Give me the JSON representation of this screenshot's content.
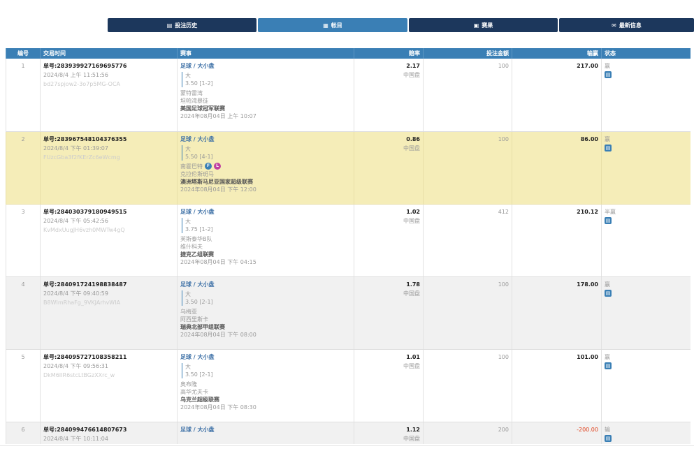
{
  "nav": [
    {
      "label": "投注历史",
      "icon": "clipboard-icon"
    },
    {
      "label": "帐目",
      "icon": "ledger-icon",
      "active": true
    },
    {
      "label": "赛果",
      "icon": "results-icon"
    },
    {
      "label": "最新信息",
      "icon": "envelope-icon"
    }
  ],
  "columns": [
    "编号",
    "交易时间",
    "赛事",
    "赔率",
    "投注金额",
    "输赢",
    "状态"
  ],
  "rows": [
    {
      "no": "1",
      "order": "单号:283939927169695776",
      "time": "2024/8/4 上午 11:51:56",
      "hash": "bd27spjow2-3o7p5MG-OCA",
      "sport": "足球 / 大小盘",
      "pick": "大",
      "line": "3.50 [1-2]",
      "home": "蒙特雷湾",
      "away": "坦帕湾暴徒",
      "league": "美国足球冠军联赛",
      "match_time": "2024年08月04日 上午 10:07",
      "odds": "2.17",
      "odds_type": "中国盘",
      "stake": "100",
      "pl": "217.00",
      "status": "赢"
    },
    {
      "no": "2",
      "order": "单号:283967548104376355",
      "time": "2024/8/4 下午 01:39:07",
      "hash": "FUzcGba3f2fKErZc6eWcmg",
      "sport": "足球 / 大小盘",
      "pick": "大",
      "line": "5.50 [4-1]",
      "home": "南霍巴特",
      "home_badges": [
        "F",
        "L"
      ],
      "away": "克拉伦斯斑马",
      "league": "澳洲塔斯马尼亚国家超级联赛",
      "match_time": "2024年08月04日 下午 12:00",
      "odds": "0.86",
      "odds_type": "中国盘",
      "stake": "100",
      "pl": "86.00",
      "status": "赢"
    },
    {
      "no": "3",
      "order": "单号:284030379180949515",
      "time": "2024/8/4 下午 05:42:56",
      "hash": "KvMdxUugJH6vzh0MWTw4gQ",
      "sport": "足球 / 大小盘",
      "pick": "大",
      "line": "3.75 [1-2]",
      "home": "芙斯泰华B队",
      "away": "维什科夫",
      "league": "捷克乙组联赛",
      "match_time": "2024年08月04日 下午 04:15",
      "odds": "1.02",
      "odds_type": "中国盘",
      "stake": "412",
      "pl": "210.12",
      "status": "半赢"
    },
    {
      "no": "4",
      "order": "单号:284091724198838487",
      "time": "2024/8/4 下午 09:40:59",
      "hash": "B8WImRhaFg_9VKJArhvWIA",
      "sport": "足球 / 大小盘",
      "pick": "大",
      "line": "3.50 [2-1]",
      "home": "乌梅亚",
      "away": "阿西里斯卡",
      "league": "瑞典北部甲组联赛",
      "match_time": "2024年08月04日 下午 08:00",
      "odds": "1.78",
      "odds_type": "中国盘",
      "stake": "100",
      "pl": "178.00",
      "status": "赢"
    },
    {
      "no": "5",
      "order": "单号:284095727108358211",
      "time": "2024/8/4 下午 09:56:31",
      "hash": "DkM6IIR6stcLtBGzXXrc_w",
      "sport": "足球 / 大小盘",
      "pick": "大",
      "line": "3.50 [2-1]",
      "home": "奥布隆",
      "away": "高华尤夫卡",
      "league": "乌克兰超级联赛",
      "match_time": "2024年08月04日 下午 08:30",
      "odds": "1.01",
      "odds_type": "中国盘",
      "stake": "100",
      "pl": "101.00",
      "status": "赢"
    },
    {
      "no": "6",
      "order": "单号:284099476614807673",
      "time": "2024/8/4 下午 10:11:04",
      "sport": "足球 / 大小盘",
      "odds": "1.12",
      "odds_type": "中国盘",
      "stake": "200",
      "pl": "-200.00",
      "status": "输"
    }
  ],
  "colors": {
    "header": "#3a7fb5",
    "nav": "#1c375c",
    "highlight": "#f5edb8",
    "loss": "#e0401c"
  }
}
